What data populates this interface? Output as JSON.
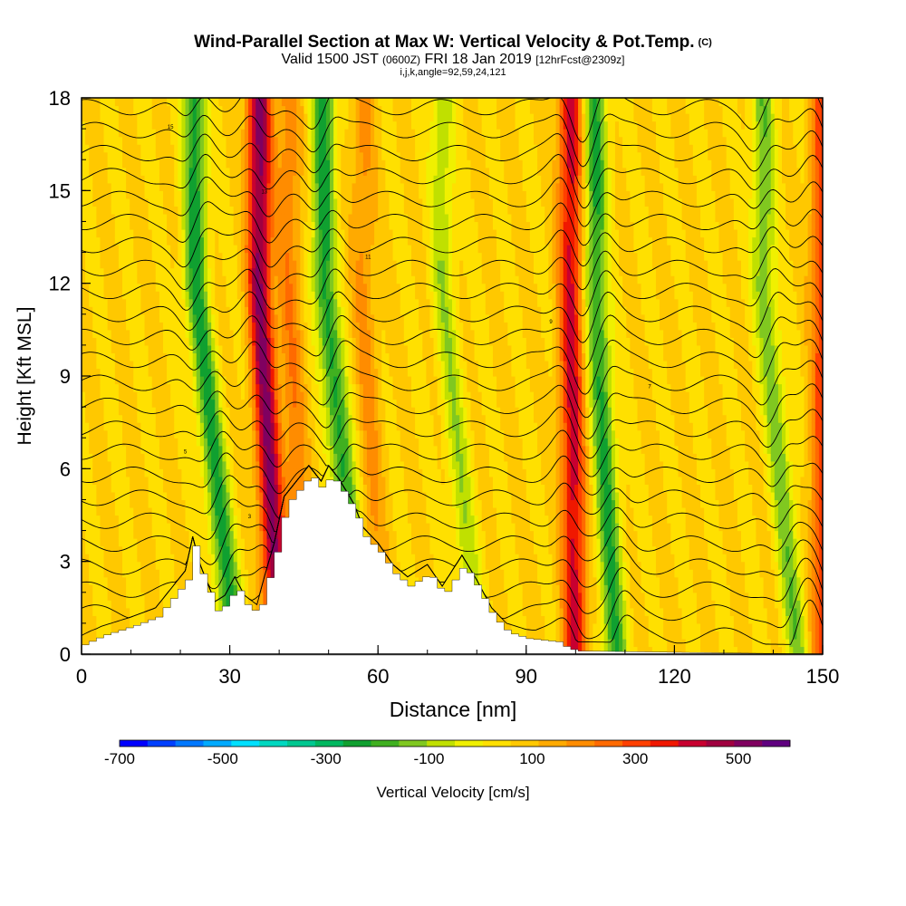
{
  "title": {
    "main": "Wind-Parallel Section at Max W: Vertical Velocity & Pot.Temp.",
    "copyright": "(C)",
    "valid_prefix": "Valid 1500 JST",
    "utc": "(0600Z)",
    "date": "FRI 18 Jan 2019",
    "forecast": "[12hrFcst@2309z]",
    "indices": "i,j,k,angle=92,59,24,121"
  },
  "chart_data": {
    "type": "heatmap",
    "xlabel": "Distance [nm]",
    "ylabel": "Height [Kft MSL]",
    "xlim": [
      0,
      150
    ],
    "ylim": [
      0,
      18
    ],
    "xticks": [
      "0",
      "30",
      "60",
      "90",
      "120",
      "150"
    ],
    "xtick_values": [
      0,
      30,
      60,
      90,
      120,
      150
    ],
    "yticks": [
      "0",
      "3",
      "6",
      "9",
      "12",
      "15",
      "18"
    ],
    "ytick_values": [
      0,
      3,
      6,
      9,
      12,
      15,
      18
    ],
    "colorbar": {
      "label": "Vertical Velocity [cm/s]",
      "tick_labels": [
        "-700",
        "-500",
        "-300",
        "-100",
        "100",
        "300",
        "500"
      ],
      "tick_values": [
        -700,
        -500,
        -300,
        -100,
        100,
        300,
        500
      ],
      "range": [
        -700,
        600
      ],
      "colors": [
        "#0000ff",
        "#0040ff",
        "#0078ff",
        "#00aaff",
        "#00e0ff",
        "#00d8c0",
        "#00c890",
        "#00b860",
        "#10a030",
        "#40b020",
        "#80c820",
        "#c0e000",
        "#f0f000",
        "#ffe000",
        "#ffc800",
        "#ffaa00",
        "#ff8c00",
        "#ff6a00",
        "#ff4000",
        "#f01800",
        "#c80030",
        "#a00040",
        "#800060",
        "#600080"
      ]
    },
    "velocity_bands": [
      {
        "x_base": 31,
        "x_top": 23,
        "w": -300
      },
      {
        "x_base": 40,
        "x_top": 36,
        "w": 450
      },
      {
        "x_base": 45,
        "x_top": 42,
        "w": 150
      },
      {
        "x_base": 57,
        "x_top": 49,
        "w": -300
      },
      {
        "x_base": 60,
        "x_top": 57,
        "w": 120
      },
      {
        "x_base": 80,
        "x_top": 73,
        "w": -150
      },
      {
        "x_base": 100,
        "x_top": 99,
        "w": 350
      },
      {
        "x_base": 108,
        "x_top": 104,
        "w": -280
      },
      {
        "x_base": 145,
        "x_top": 138,
        "w": -200
      },
      {
        "x_base": 150,
        "x_top": 150,
        "w": 250
      }
    ],
    "terrain": [
      {
        "x": 0,
        "h": 0.3
      },
      {
        "x": 4,
        "h": 0.6
      },
      {
        "x": 10,
        "h": 0.9
      },
      {
        "x": 15,
        "h": 1.2
      },
      {
        "x": 18,
        "h": 1.8
      },
      {
        "x": 21,
        "h": 2.4
      },
      {
        "x": 22.5,
        "h": 3.5
      },
      {
        "x": 24,
        "h": 2.6
      },
      {
        "x": 26,
        "h": 1.8
      },
      {
        "x": 27,
        "h": 1.4
      },
      {
        "x": 29,
        "h": 1.6
      },
      {
        "x": 31,
        "h": 2.2
      },
      {
        "x": 33,
        "h": 1.6
      },
      {
        "x": 35.5,
        "h": 1.3
      },
      {
        "x": 37,
        "h": 2.2
      },
      {
        "x": 39,
        "h": 3.3
      },
      {
        "x": 41,
        "h": 4.8
      },
      {
        "x": 44,
        "h": 5.4
      },
      {
        "x": 46,
        "h": 5.8
      },
      {
        "x": 48.5,
        "h": 5.3
      },
      {
        "x": 50,
        "h": 5.8
      },
      {
        "x": 52,
        "h": 5.4
      },
      {
        "x": 55,
        "h": 4.6
      },
      {
        "x": 57,
        "h": 3.8
      },
      {
        "x": 60,
        "h": 3.3
      },
      {
        "x": 63,
        "h": 2.6
      },
      {
        "x": 66,
        "h": 2.2
      },
      {
        "x": 70,
        "h": 2.6
      },
      {
        "x": 73,
        "h": 1.9
      },
      {
        "x": 75,
        "h": 2.4
      },
      {
        "x": 77,
        "h": 2.9
      },
      {
        "x": 80,
        "h": 2.1
      },
      {
        "x": 83,
        "h": 1.2
      },
      {
        "x": 86,
        "h": 0.7
      },
      {
        "x": 90,
        "h": 0.5
      },
      {
        "x": 96,
        "h": 0.4
      },
      {
        "x": 98,
        "h": 0.2
      },
      {
        "x": 100,
        "h": 0.1
      },
      {
        "x": 150,
        "h": 0
      }
    ],
    "theta_contours": {
      "count": 24,
      "start_height_kft": 0.6,
      "top_height_kft": 17.7,
      "label_values": [
        "15",
        "13",
        "11",
        "9",
        "7",
        "5",
        "3"
      ]
    }
  }
}
